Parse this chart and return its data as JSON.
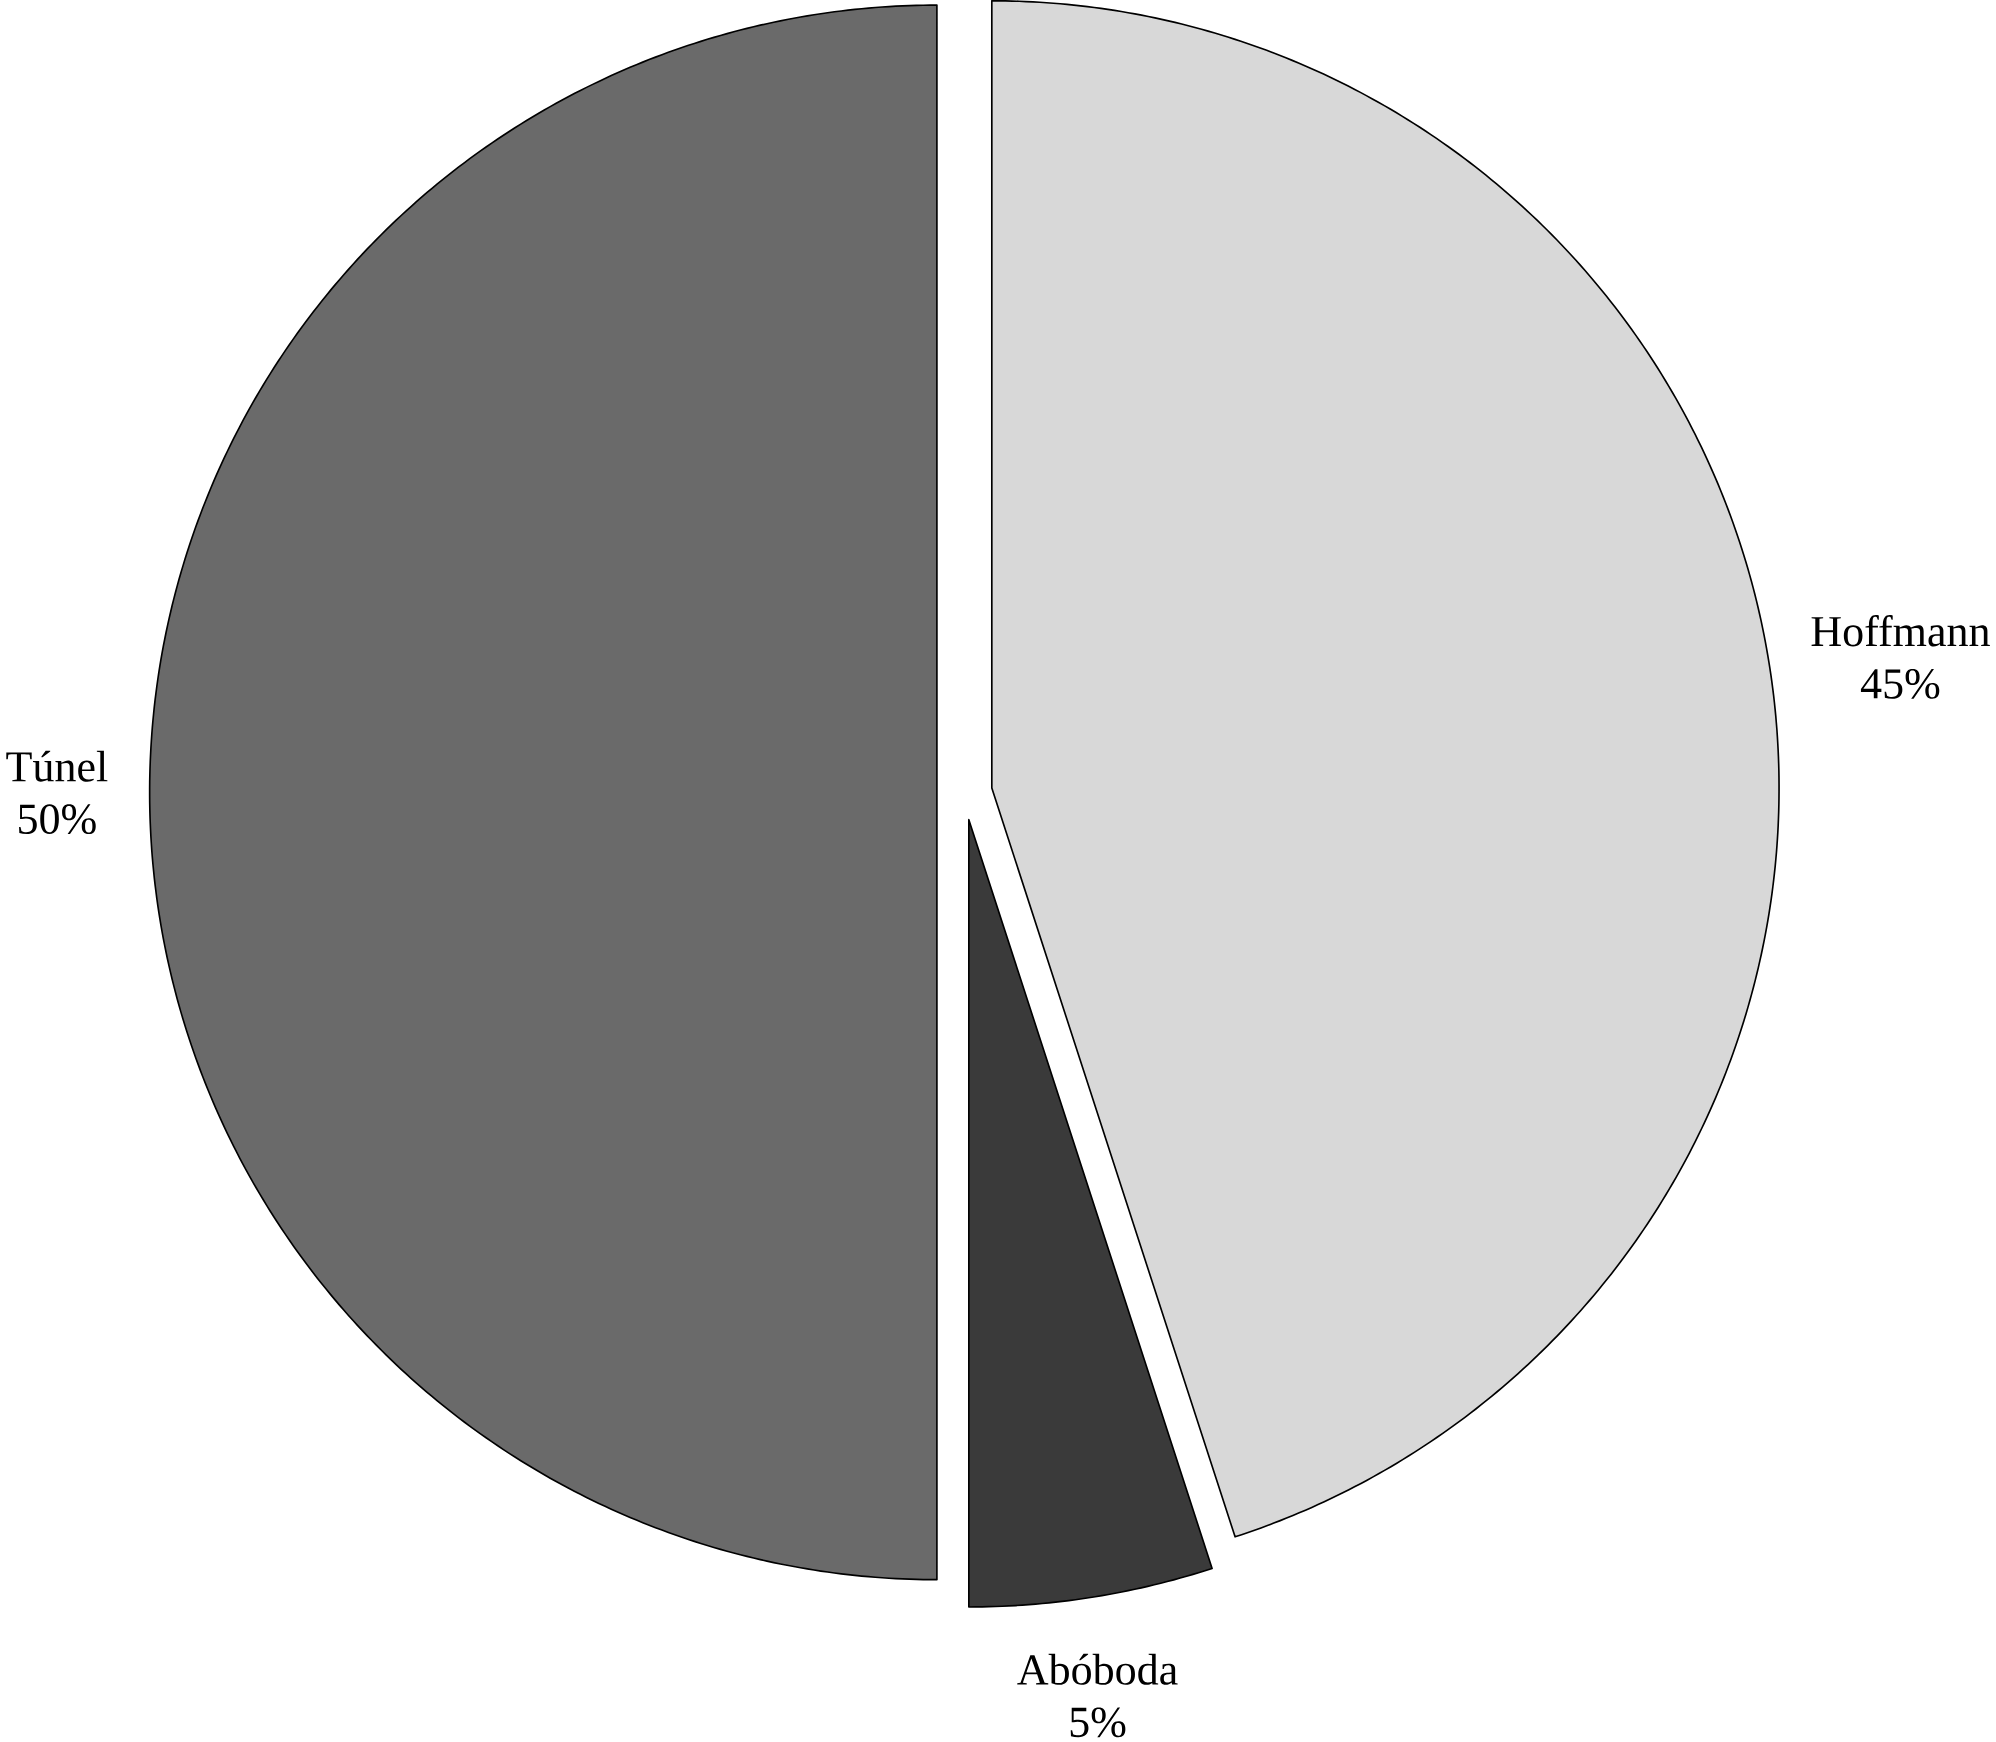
{
  "chart_data": {
    "type": "pie",
    "categories": [
      "Hoffmann",
      "Abóboda",
      "Túnel"
    ],
    "values": [
      45,
      5,
      50
    ],
    "value_labels": [
      "45%",
      "5%",
      "50%"
    ],
    "colors": [
      "#d8d8d8",
      "#3a3a3a",
      "#6a6a6a"
    ]
  }
}
